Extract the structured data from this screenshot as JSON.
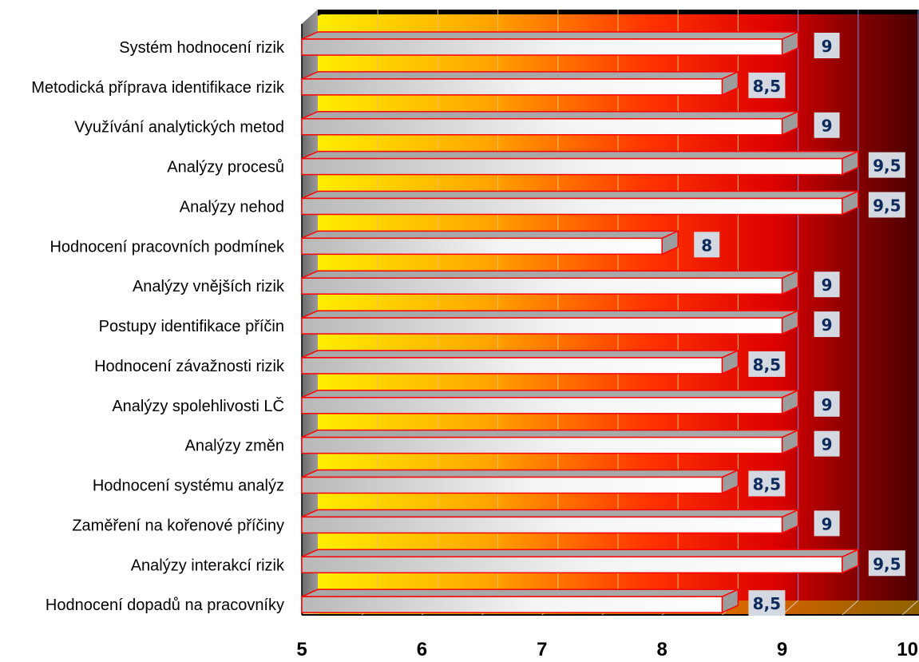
{
  "chart_data": {
    "type": "bar",
    "orientation": "horizontal",
    "categories": [
      "Systém hodnocení rizik ",
      "Metodická příprava identifikace rizik",
      "Využívání analytických metod ",
      "Analýzy procesů",
      "Analýzy nehod",
      "Hodnocení pracovních podmínek ",
      "Analýzy vnějších rizik",
      "Postupy identifikace příčin",
      "Hodnocení závažnosti rizik",
      "Analýzy spolehlivosti LČ",
      "Analýzy změn ",
      "Hodnocení systému analýz",
      "Zaměření na kořenové příčiny",
      "Analýzy interakcí rizik",
      "Hodnocení dopadů na pracovníky"
    ],
    "values": [
      9,
      8.5,
      9,
      9.5,
      9.5,
      8,
      9,
      9,
      8.5,
      9,
      9,
      8.5,
      9,
      9.5,
      8.5
    ],
    "value_labels": [
      "9",
      "8,5",
      "9",
      "9,5",
      "9,5",
      "8",
      "9",
      "9",
      "8,5",
      "9",
      "9",
      "8,5",
      "9",
      "9,5",
      "8,5"
    ],
    "xlim": [
      5,
      10
    ],
    "xticks": [
      "5",
      "6",
      "7",
      "8",
      "9",
      "10"
    ],
    "grid": true,
    "colors": {
      "background_yellow": "#ffee00",
      "background_orange": "#ff9900",
      "background_red": "#ee1100",
      "background_dark_red": "#5a0000",
      "bar_fill": "#e8e8e8",
      "bar_border": "#ff0000",
      "value_text": "#0d2a5c",
      "value_box": "#d4d8e0"
    }
  }
}
